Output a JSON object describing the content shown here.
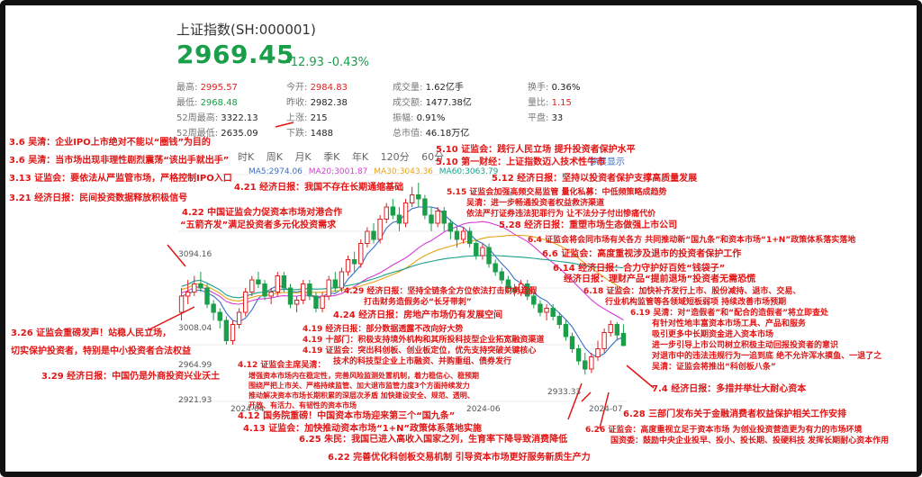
{
  "header": {
    "title": "上证指数(SH:000001)",
    "price": "2969.45",
    "change": "-12.93 -0.43%"
  },
  "stats": {
    "high_label": "最高:",
    "high": "2995.57",
    "low_label": "最低:",
    "low": "2968.48",
    "w52_high_label": "52周最高:",
    "w52_high": "3322.13",
    "w52_low_label": "52周最低:",
    "w52_low": "2635.09",
    "open_label": "今开:",
    "open": "2984.83",
    "prev_label": "昨收:",
    "prev": "2982.38",
    "up_label": "上涨:",
    "up": "215",
    "down_label": "下跌:",
    "down": "1488",
    "vol_label": "成交量:",
    "vol": "1.62亿手",
    "amt_label": "成交额:",
    "amt": "1477.38亿",
    "amp_label": "振幅:",
    "amp": "0.91%",
    "mcap_label": "总市值:",
    "mcap": "46.18万亿",
    "turn_label": "换手:",
    "turn": "0.36%",
    "ratio_label": "量比:",
    "ratio": "1.15",
    "flat_label": "平盘:",
    "flat": "33"
  },
  "tabs": [
    "时K",
    "周K",
    "月K",
    "季K",
    "年K",
    "120分",
    "60分"
  ],
  "ma_labels": {
    "ma5": "MA5:2974.06",
    "ma20": "MA20:3001.87",
    "ma30": "MA30:3043.36",
    "ma60": "MA60:3063.79"
  },
  "link_text": "参展显示",
  "colors": {
    "up": "#e02020",
    "down": "#1a9e4a",
    "ma5": "#3a6ec9",
    "ma20": "#d63ad6",
    "ma30": "#e8a317",
    "ma60": "#1aa08a",
    "annotation": "#e01515"
  },
  "annotations": [
    {
      "text": "3.6 吴清：企业IPO上市绝对不能以“圈钱”为目的"
    },
    {
      "text": "3.6 吴清：当市场出现非理性剧烈震荡“该出手就出手”"
    },
    {
      "text": "3.13 证监会：要依法从严监管市场，严格控制IPO入口"
    },
    {
      "text": "3.21 经济日报：民间投资数据释放积极信号"
    },
    {
      "text": "4.21 经济日报：我国不存在长期通缩基础"
    },
    {
      "text": "4.22 中国证监会力促资本市场对港合作"
    },
    {
      "text": "“五箭齐发”满足投资者多元化投资需求"
    },
    {
      "text": "5.10 证监会：践行人民立场 提升投资者保护水平"
    },
    {
      "text": "5.10 第一财经：上证指数迈入技术性牛市"
    },
    {
      "text": "5.12 经济日报：坚持以投资者保护支撑高质量发展"
    },
    {
      "text": "5.15 证监会加强高频交易监管 量化私募：中低频策略成趋势"
    },
    {
      "text": "吴清：进一步畅通投资者权益救济渠道"
    },
    {
      "text": "依法严打证券违法犯罪行为 让不法分子付出惨痛代价"
    },
    {
      "text": "5.28 经济日报：重塑市场生态做强上市公司"
    },
    {
      "text": "6.4 证监会将会同市场有关各方 共同推动新“国九条”和资本市场“1+N”政策体系落实落地"
    },
    {
      "text": "6.6 证监会：高度重视涉及退市的投资者保护工作"
    },
    {
      "text": "6.14 经济日报：合力守护好百姓“钱袋子”"
    },
    {
      "text": "经济日报：理财产品“提前退场”投资者无需恐慌"
    },
    {
      "text": "6.18 证监会：加快补齐发行上市、股份减持、退市、交易、"
    },
    {
      "text": "行业机构监管等各领域短板弱项 持续改善市场预期"
    },
    {
      "text": "6.19 吴清：对“造假者”和“配合的造假者”将立即查处"
    },
    {
      "text": "有针对性地丰富资本市场工具、产品和服务"
    },
    {
      "text": "吸引更多中长期资金进入资本市场"
    },
    {
      "text": "进一步引导上市公司树立积极主动回报投资者的意识"
    },
    {
      "text": "对退市中的违法违规行为一追到底 绝不允许浑水摸鱼、一退了之"
    },
    {
      "text": "吴清：证监会将推出“科创板八条”"
    },
    {
      "text": "7.4 经济日报：多措并举壮大耐心资本"
    },
    {
      "text": "6.28 三部门发布关于金融消费者权益保护相关工作安排"
    },
    {
      "text": "6.26 证监会：高度重视立足于资本市场 为创业投资营造更为有力的市场环境"
    },
    {
      "text": "国资委：鼓励中央企业投早、投小、投长期、投硬科技 发挥长期耐心资本作用"
    },
    {
      "text": "6.25 朱民：我国已进入高收入国家之列，生育率下降导致消费降低"
    },
    {
      "text": "6.22 完善优化科创板交易机制 引导资本市场更好服务新质生产力"
    },
    {
      "text": "4.29 经济日报：坚持全链条全方位依法打击财务造假"
    },
    {
      "text": "打击财务造假务必“长牙带刺”"
    },
    {
      "text": "4.24 经济日报：房地产市场仍有发展空间"
    },
    {
      "text": "4.19 经济日报：部分数据透露不改向好大势"
    },
    {
      "text": "4.19 十部门：积极支持境外机构和其所投科技型企业拓宽融资渠道"
    },
    {
      "text": "4.19 证监会：突出科创板、创业板定位，优先支持突破关键核心"
    },
    {
      "text": "技术的科技型企业上市融资、并购重组、债券发行"
    },
    {
      "text": "4.12 证监会主席吴清："
    },
    {
      "text": "增强资本市场内在稳定性，完善风险监测处置机制，着力稳信心、稳预期"
    },
    {
      "text": "围绕严把上市关、严格持续监管、加大退市监管力度3个方面持续发力"
    },
    {
      "text": "推动解决资本市场长期积累的深层次矛盾 加快建设安全、规范、透明、"
    },
    {
      "text": "开放、有活力、有韧性的资本市场"
    },
    {
      "text": "4.12 国务院重磅！中国资本市场迎来第三个“国九条”"
    },
    {
      "text": "4.13 证监会：加快推动资本市场“1+N”政策体系落地实施"
    },
    {
      "text": "3.26 证监会重磅发声！站稳人民立场，"
    },
    {
      "text": "切实保护投资者，特别是中小投资者合法权益"
    },
    {
      "text": "3.29 经济日报：中国仍是外商投资兴业沃土"
    }
  ],
  "chart_data": {
    "type": "candlestick",
    "x_labels": [
      "2024-04",
      "2024-06",
      "2024-07"
    ],
    "y_labels": [
      "3094.16",
      "3008.04",
      "2964.99",
      "2921.93",
      "2933.33"
    ],
    "ylim": [
      2900,
      3180
    ],
    "candles": [
      {
        "o": 3010,
        "c": 3030,
        "h": 3040,
        "l": 3000
      },
      {
        "o": 3030,
        "c": 3035,
        "h": 3050,
        "l": 3020
      },
      {
        "o": 3035,
        "c": 3045,
        "h": 3055,
        "l": 3030
      },
      {
        "o": 3045,
        "c": 3040,
        "h": 3060,
        "l": 3035
      },
      {
        "o": 3040,
        "c": 3020,
        "h": 3045,
        "l": 3015
      },
      {
        "o": 3020,
        "c": 3010,
        "h": 3025,
        "l": 3000
      },
      {
        "o": 3010,
        "c": 3000,
        "h": 3015,
        "l": 2990
      },
      {
        "o": 3000,
        "c": 2975,
        "h": 3005,
        "l": 2970
      },
      {
        "o": 2975,
        "c": 2995,
        "h": 3000,
        "l": 2970
      },
      {
        "o": 2995,
        "c": 3010,
        "h": 3015,
        "l": 2990
      },
      {
        "o": 3010,
        "c": 3035,
        "h": 3040,
        "l": 3005
      },
      {
        "o": 3035,
        "c": 3050,
        "h": 3055,
        "l": 3030
      },
      {
        "o": 3050,
        "c": 3045,
        "h": 3060,
        "l": 3040
      },
      {
        "o": 3045,
        "c": 3030,
        "h": 3050,
        "l": 3025
      },
      {
        "o": 3030,
        "c": 3035,
        "h": 3040,
        "l": 3020
      },
      {
        "o": 3035,
        "c": 3055,
        "h": 3060,
        "l": 3030
      },
      {
        "o": 3055,
        "c": 3040,
        "h": 3060,
        "l": 3035
      },
      {
        "o": 3040,
        "c": 3020,
        "h": 3045,
        "l": 3015
      },
      {
        "o": 3020,
        "c": 3025,
        "h": 3030,
        "l": 3010
      },
      {
        "o": 3025,
        "c": 3045,
        "h": 3050,
        "l": 3020
      },
      {
        "o": 3045,
        "c": 3030,
        "h": 3050,
        "l": 3025
      },
      {
        "o": 3030,
        "c": 3015,
        "h": 3035,
        "l": 3010
      },
      {
        "o": 3015,
        "c": 3030,
        "h": 3035,
        "l": 3010
      },
      {
        "o": 3030,
        "c": 3050,
        "h": 3055,
        "l": 3025
      },
      {
        "o": 3050,
        "c": 3040,
        "h": 3060,
        "l": 3035
      },
      {
        "o": 3040,
        "c": 3060,
        "h": 3065,
        "l": 3035
      },
      {
        "o": 3060,
        "c": 3075,
        "h": 3080,
        "l": 3055
      },
      {
        "o": 3075,
        "c": 3070,
        "h": 3085,
        "l": 3060
      },
      {
        "o": 3070,
        "c": 3095,
        "h": 3100,
        "l": 3065
      },
      {
        "o": 3095,
        "c": 3110,
        "h": 3115,
        "l": 3090
      },
      {
        "o": 3110,
        "c": 3100,
        "h": 3120,
        "l": 3095
      },
      {
        "o": 3100,
        "c": 3125,
        "h": 3130,
        "l": 3095
      },
      {
        "o": 3125,
        "c": 3140,
        "h": 3145,
        "l": 3120
      },
      {
        "o": 3140,
        "c": 3130,
        "h": 3150,
        "l": 3125
      },
      {
        "o": 3130,
        "c": 3120,
        "h": 3140,
        "l": 3110
      },
      {
        "o": 3120,
        "c": 3145,
        "h": 3150,
        "l": 3115
      },
      {
        "o": 3145,
        "c": 3155,
        "h": 3165,
        "l": 3140
      },
      {
        "o": 3155,
        "c": 3150,
        "h": 3170,
        "l": 3140
      },
      {
        "o": 3150,
        "c": 3130,
        "h": 3155,
        "l": 3125
      },
      {
        "o": 3130,
        "c": 3120,
        "h": 3140,
        "l": 3110
      },
      {
        "o": 3120,
        "c": 3135,
        "h": 3140,
        "l": 3115
      },
      {
        "o": 3135,
        "c": 3120,
        "h": 3140,
        "l": 3110
      },
      {
        "o": 3120,
        "c": 3110,
        "h": 3125,
        "l": 3100
      },
      {
        "o": 3110,
        "c": 3100,
        "h": 3115,
        "l": 3090
      },
      {
        "o": 3100,
        "c": 3110,
        "h": 3115,
        "l": 3095
      },
      {
        "o": 3110,
        "c": 3095,
        "h": 3115,
        "l": 3090
      },
      {
        "o": 3095,
        "c": 3080,
        "h": 3100,
        "l": 3075
      },
      {
        "o": 3080,
        "c": 3090,
        "h": 3095,
        "l": 3075
      },
      {
        "o": 3090,
        "c": 3070,
        "h": 3095,
        "l": 3065
      },
      {
        "o": 3070,
        "c": 3060,
        "h": 3075,
        "l": 3055
      },
      {
        "o": 3060,
        "c": 3050,
        "h": 3065,
        "l": 3045
      },
      {
        "o": 3050,
        "c": 3040,
        "h": 3055,
        "l": 3035
      },
      {
        "o": 3040,
        "c": 3035,
        "h": 3045,
        "l": 3030
      },
      {
        "o": 3035,
        "c": 3045,
        "h": 3050,
        "l": 3030
      },
      {
        "o": 3045,
        "c": 3030,
        "h": 3050,
        "l": 3025
      },
      {
        "o": 3030,
        "c": 3020,
        "h": 3035,
        "l": 3015
      },
      {
        "o": 3020,
        "c": 3010,
        "h": 3025,
        "l": 3005
      },
      {
        "o": 3010,
        "c": 3015,
        "h": 3020,
        "l": 3000
      },
      {
        "o": 3015,
        "c": 3005,
        "h": 3020,
        "l": 3000
      },
      {
        "o": 3005,
        "c": 2995,
        "h": 3010,
        "l": 2990
      },
      {
        "o": 2995,
        "c": 2980,
        "h": 3000,
        "l": 2975
      },
      {
        "o": 2980,
        "c": 2965,
        "h": 2985,
        "l": 2960
      },
      {
        "o": 2965,
        "c": 2950,
        "h": 2970,
        "l": 2945
      },
      {
        "o": 2950,
        "c": 2940,
        "h": 2960,
        "l": 2933
      },
      {
        "o": 2940,
        "c": 2955,
        "h": 2960,
        "l": 2935
      },
      {
        "o": 2955,
        "c": 2965,
        "h": 2975,
        "l": 2950
      },
      {
        "o": 2965,
        "c": 2985,
        "h": 2990,
        "l": 2960
      },
      {
        "o": 2985,
        "c": 2995,
        "h": 3000,
        "l": 2980
      },
      {
        "o": 2995,
        "c": 2982,
        "h": 2998,
        "l": 2975
      },
      {
        "o": 2984,
        "c": 2969,
        "h": 2995,
        "l": 2968
      }
    ]
  }
}
